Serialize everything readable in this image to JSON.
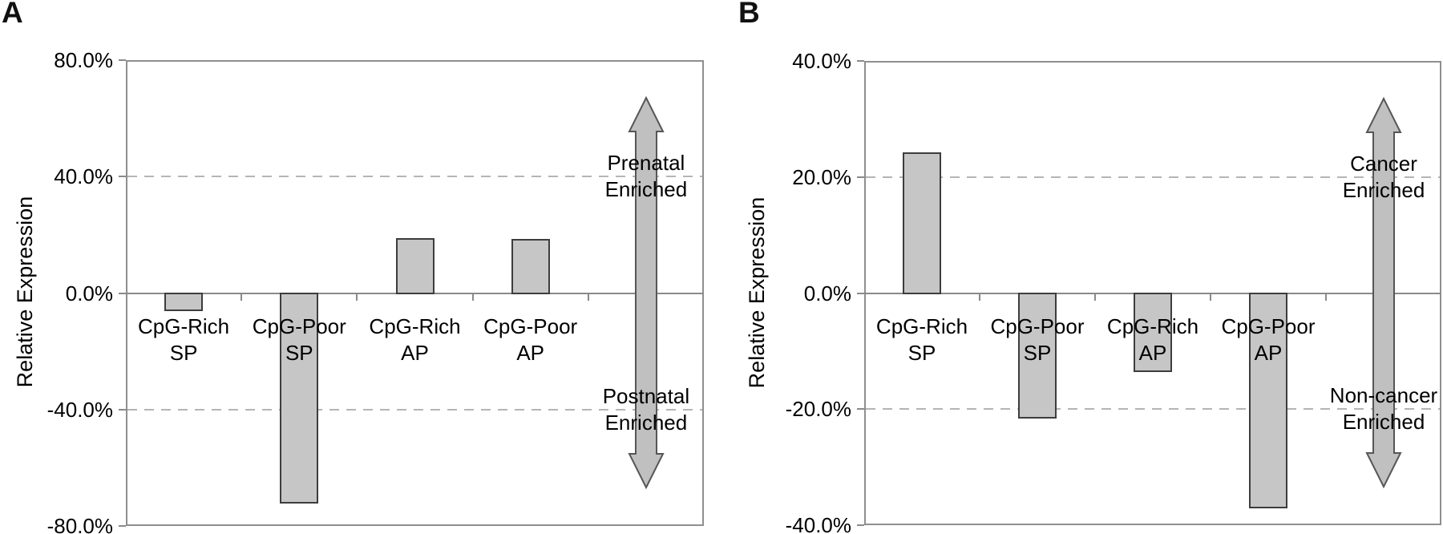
{
  "figure": {
    "background": "#ffffff",
    "text_color": "#000000"
  },
  "chart_data": [
    {
      "type": "bar",
      "panel_label": "A",
      "ylabel": "Relative Expression",
      "ymin": -80,
      "ymax": 80,
      "ytick_step": 40,
      "ytick_labels": [
        "80.0%",
        "40.0%",
        "0.0%",
        "-40.0%",
        "-80.0%"
      ],
      "categories": [
        [
          "CpG-Rich",
          "SP"
        ],
        [
          "CpG-Poor",
          "SP"
        ],
        [
          "CpG-Rich",
          "AP"
        ],
        [
          "CpG-Poor",
          "AP"
        ]
      ],
      "values": [
        -6,
        -72,
        19,
        18.5
      ],
      "grid": "dashed horizontal lines at +40 and -40, solid zero line, full rectangular border",
      "legend": "none",
      "arrow_annotation": {
        "up": [
          "Prenatal",
          "Enriched"
        ],
        "down": [
          "Postnatal",
          "Enriched"
        ]
      },
      "bar_fill": "#c6c6c6",
      "bar_stroke": "#3d3d3d",
      "arrow_fill": "#c0c0c0",
      "arrow_stroke": "#565656",
      "axis_color": "#8f8f8f",
      "dash_color": "#b5b5b5"
    },
    {
      "type": "bar",
      "panel_label": "B",
      "ylabel": "Relative Expression",
      "ymin": -40,
      "ymax": 40,
      "ytick_step": 20,
      "ytick_labels": [
        "40.0%",
        "20.0%",
        "0.0%",
        "-20.0%",
        "-40.0%"
      ],
      "categories": [
        [
          "CpG-Rich",
          "SP"
        ],
        [
          "CpG-Poor",
          "SP"
        ],
        [
          "CpG-Rich",
          "AP"
        ],
        [
          "CpG-Poor",
          "AP"
        ]
      ],
      "values": [
        24.3,
        -21.5,
        -13.5,
        -37
      ],
      "grid": "dashed horizontal lines at +20 and -20, solid zero line, full rectangular border",
      "legend": "none",
      "arrow_annotation": {
        "up": [
          "Cancer",
          "Enriched"
        ],
        "down": [
          "Non-cancer",
          "Enriched"
        ]
      },
      "bar_fill": "#c6c6c6",
      "bar_stroke": "#3d3d3d",
      "arrow_fill": "#c0c0c0",
      "arrow_stroke": "#565656",
      "axis_color": "#8f8f8f",
      "dash_color": "#b5b5b5"
    }
  ]
}
